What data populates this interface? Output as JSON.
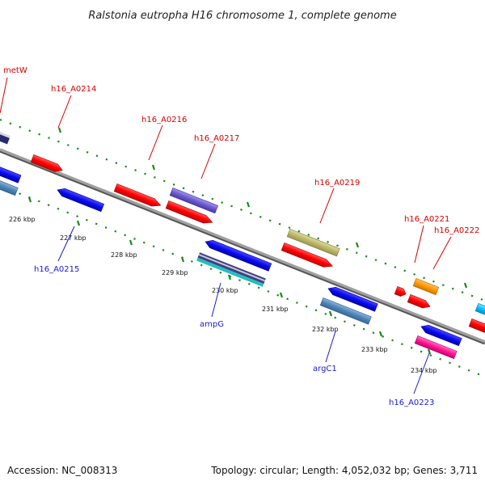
{
  "title": "Ralstonia eutropha H16 chromosome 1, complete genome",
  "footer": {
    "accession": "Accession: NC_008313",
    "summary": "Topology: circular; Length: 4,052,032 bp; Genes: 3,711"
  },
  "colors": {
    "backbone": "#8a8a8a",
    "tick_ring": "#1a8a1a",
    "label_forward": "#d40000",
    "label_reverse": "#1a1ad0"
  },
  "ruler": [
    "226 kbp",
    "227 kbp",
    "228 kbp",
    "229 kbp",
    "230 kbp",
    "231 kbp",
    "232 kbp",
    "233 kbp",
    "234 kbp"
  ],
  "gene_labels": {
    "metW": "metW",
    "h16_A0214": "h16_A0214",
    "h16_A0215": "h16_A0215",
    "h16_A0216": "h16_A0216",
    "h16_A0217": "h16_A0217",
    "ampG": "ampG",
    "h16_A0219": "h16_A0219",
    "argC1": "argC1",
    "h16_A0221": "h16_A0221",
    "h16_A0222": "h16_A0222",
    "h16_A0223": "h16_A0223"
  }
}
